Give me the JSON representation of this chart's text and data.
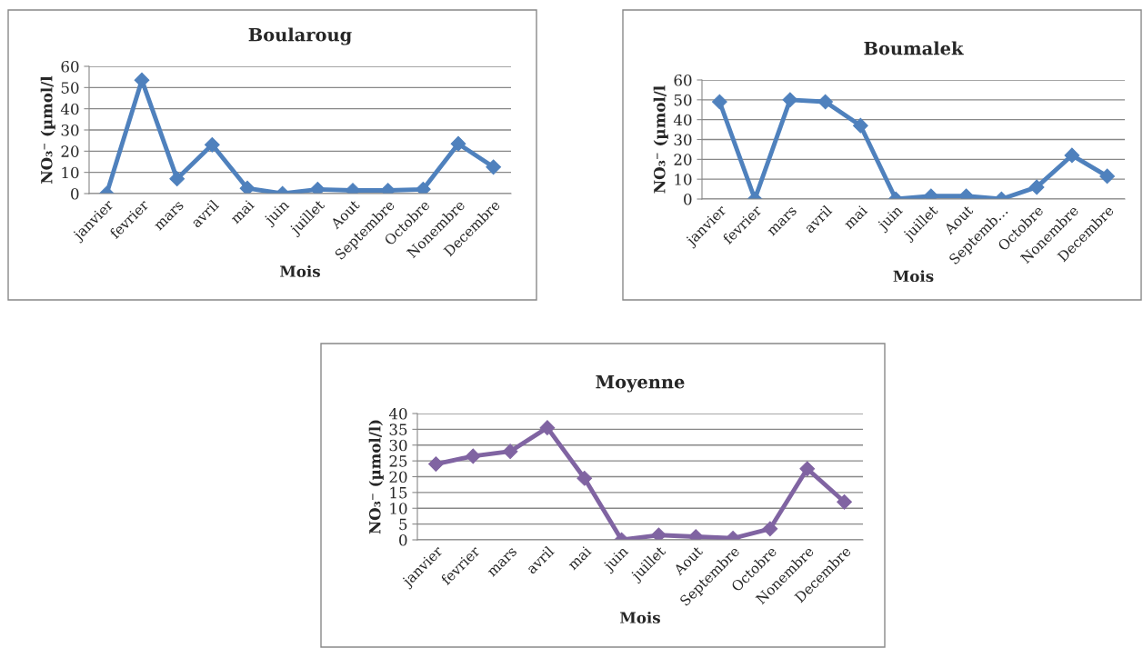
{
  "chart_data": [
    {
      "type": "line",
      "title": "Boularoug",
      "xlabel": "Mois",
      "ylabel": "NO₃⁻ (µmol/l",
      "categories": [
        "janvier",
        "fevrier",
        "mars",
        "avril",
        "mai",
        "juin",
        "juillet",
        "Aout",
        "Septembre",
        "Octobre",
        "Nonembre",
        "Decembre"
      ],
      "series": [
        {
          "color": "#4f81bd",
          "values": [
            0,
            53.5,
            7,
            23,
            2.5,
            0,
            2,
            1.5,
            1.5,
            2,
            23.5,
            12.5
          ]
        }
      ],
      "ylim": [
        0,
        60
      ],
      "yticks": [
        0,
        10,
        20,
        30,
        40,
        50,
        60
      ],
      "grid": "y",
      "legend": false,
      "marker": "diamond",
      "line_style": "solid"
    },
    {
      "type": "line",
      "title": "Boumalek",
      "xlabel": "Mois",
      "ylabel": "NO₃⁻ (µmol/l",
      "categories": [
        "janvier",
        "fevrier",
        "mars",
        "avril",
        "mai",
        "juin",
        "juillet",
        "Aout",
        "Septemb…",
        "Octobre",
        "Nonembre",
        "Decembre"
      ],
      "series": [
        {
          "color": "#4f81bd",
          "values": [
            49,
            0,
            50,
            49,
            37,
            0,
            1.5,
            1.5,
            0,
            6,
            22,
            11.5
          ]
        }
      ],
      "ylim": [
        0,
        60
      ],
      "yticks": [
        0,
        10,
        20,
        30,
        40,
        50,
        60
      ],
      "grid": "y",
      "legend": false,
      "marker": "diamond",
      "line_style": "solid"
    },
    {
      "type": "line",
      "title": "Moyenne",
      "xlabel": "Mois",
      "ylabel": "NO₃⁻ (µmol/l)",
      "categories": [
        "janvier",
        "fevrier",
        "mars",
        "avril",
        "mai",
        "juin",
        "juillet",
        "Aout",
        "Septembre",
        "Octobre",
        "Nonembre",
        "Decembre"
      ],
      "series": [
        {
          "color": "#8064a2",
          "values": [
            24,
            26.5,
            28,
            35.5,
            19.5,
            0,
            1.5,
            1,
            0.5,
            3.5,
            22.5,
            12
          ]
        }
      ],
      "ylim": [
        0,
        40
      ],
      "yticks": [
        0,
        5,
        10,
        15,
        20,
        25,
        30,
        35,
        40
      ],
      "grid": "y",
      "legend": false,
      "marker": "diamond",
      "line_style": "solid"
    }
  ]
}
